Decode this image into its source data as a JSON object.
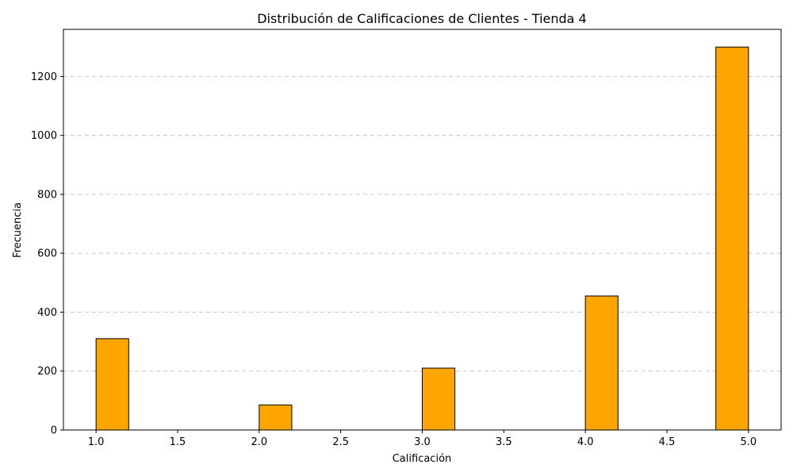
{
  "chart_data": {
    "type": "bar",
    "title": "Distribución de Calificaciones de Clientes - Tienda 4",
    "xlabel": "Calificación",
    "ylabel": "Frecuencia",
    "xlim": [
      0.8,
      5.2
    ],
    "ylim": [
      0,
      1360
    ],
    "bin_width": 0.2,
    "bars": [
      {
        "x_start": 1.0,
        "value": 310
      },
      {
        "x_start": 2.0,
        "value": 85
      },
      {
        "x_start": 3.0,
        "value": 210
      },
      {
        "x_start": 4.0,
        "value": 455
      },
      {
        "x_start": 4.8,
        "value": 1300
      }
    ],
    "x_ticks": [
      "1.0",
      "1.5",
      "2.0",
      "2.5",
      "3.0",
      "3.5",
      "4.0",
      "4.5",
      "5.0"
    ],
    "y_ticks": [
      "0",
      "200",
      "400",
      "600",
      "800",
      "1000",
      "1200"
    ],
    "grid": {
      "y": true,
      "x": false,
      "style": "dashed"
    },
    "colors": {
      "bar_fill": "#ffa500",
      "bar_edge": "#000000",
      "grid": "#c8c8c8"
    }
  }
}
